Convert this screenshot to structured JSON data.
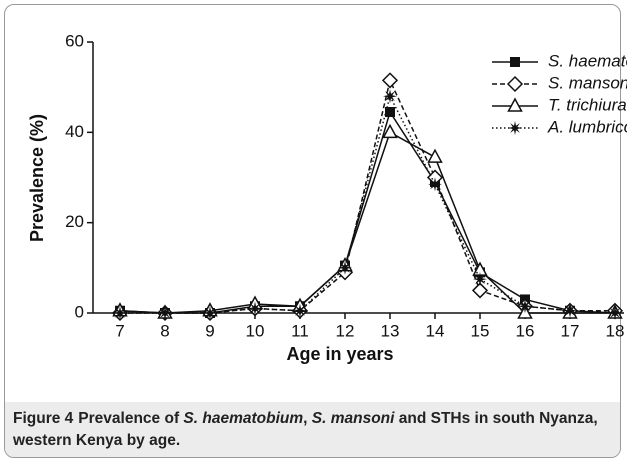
{
  "chart_data": {
    "type": "line",
    "xlabel": "Age in years",
    "ylabel": "Prevalence (%)",
    "x": [
      7,
      8,
      9,
      10,
      11,
      12,
      13,
      14,
      15,
      16,
      17,
      18
    ],
    "xlim": [
      6.4,
      18.2
    ],
    "xticks": [
      7,
      8,
      9,
      10,
      11,
      12,
      13,
      14,
      15,
      16,
      17,
      18
    ],
    "ylim": [
      0,
      60
    ],
    "yticks": [
      0,
      20,
      40,
      60
    ],
    "grid": false,
    "legend": "upper right",
    "series": [
      {
        "name": "S. haematobium",
        "color": "#111111",
        "linestyle": "solid",
        "marker": "square",
        "values": [
          0.5,
          0,
          0,
          1.5,
          1.5,
          10.5,
          44.5,
          29,
          9,
          3,
          0.5,
          0
        ]
      },
      {
        "name": "S. mansoni",
        "color": "#111111",
        "linestyle": "dashed",
        "marker": "diamond",
        "values": [
          0,
          0,
          0,
          1,
          0.5,
          9,
          51.5,
          30,
          5,
          1.5,
          0.5,
          0.5
        ]
      },
      {
        "name": "T. trichiura",
        "color": "#111111",
        "linestyle": "solid",
        "marker": "triangle",
        "values": [
          0.5,
          0,
          0.5,
          2,
          1.5,
          10.5,
          40,
          34.5,
          9.5,
          0,
          0,
          0
        ]
      },
      {
        "name": "A. lumbricoides",
        "color": "#111111",
        "linestyle": "dotted",
        "marker": "star",
        "values": [
          0,
          0,
          0,
          1,
          0.5,
          10,
          48,
          28.5,
          7.5,
          1.5,
          0.5,
          0
        ]
      }
    ]
  },
  "caption": {
    "label": "Figure 4",
    "segments": [
      "Prevalence of ",
      "S. haematobium",
      ", ",
      "S. mansoni",
      " and STHs in south Nyanza, western Kenya by age."
    ]
  }
}
